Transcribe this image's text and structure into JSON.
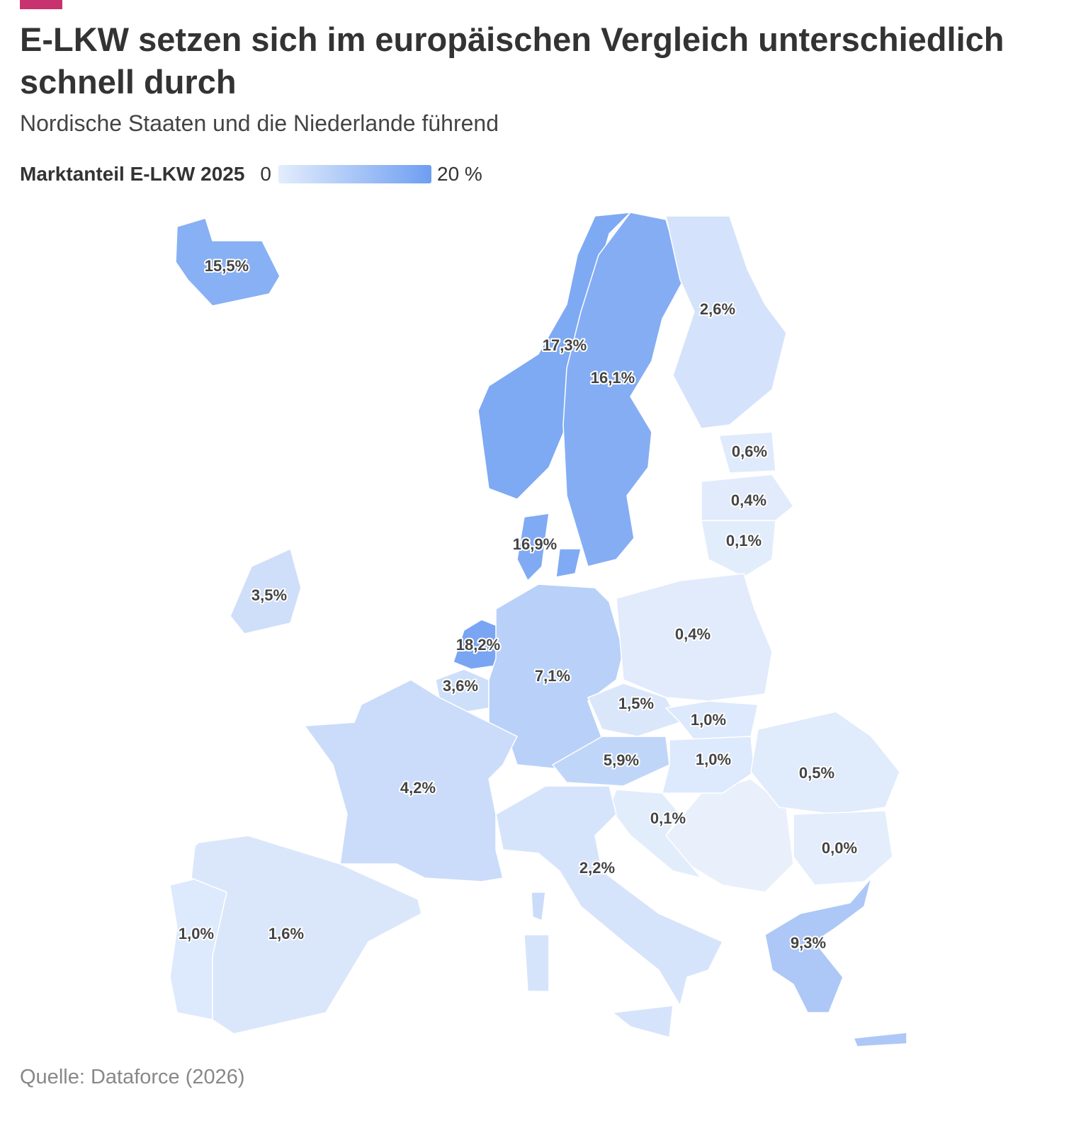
{
  "chart_data": {
    "type": "choropleth",
    "title": "E-LKW setzen sich im europäischen Vergleich unterschiedlich schnell durch",
    "subtitle": "Nordische Staaten und die Niederlande führend",
    "legend_title": "Marktanteil E-LKW 2025",
    "scale": {
      "min": {
        "value": 0,
        "label": "0"
      },
      "max": {
        "value": 20,
        "label": "20 %"
      },
      "colors": [
        "#e3edfc",
        "#6e9ef2"
      ]
    },
    "values": [
      15.5,
      17.3,
      16.1,
      2.6,
      0.6,
      0.4,
      0.1,
      16.9,
      3.5,
      18.2,
      3.6,
      7.1,
      0.4,
      1.5,
      1.0,
      5.9,
      1.0,
      0.5,
      0.1,
      0.0,
      2.2,
      4.2,
      1.0,
      1.6,
      9.3
    ],
    "value_labels": [
      "15,5%",
      "17,3%",
      "16,1%",
      "2,6%",
      "0,6%",
      "0,4%",
      "0,1%",
      "16,9%",
      "3,5%",
      "18,2%",
      "3,6%",
      "7,1%",
      "0,4%",
      "1,5%",
      "1,0%",
      "5,9%",
      "1,0%",
      "0,5%",
      "0,1%",
      "0,0%",
      "2,2%",
      "4,2%",
      "1,0%",
      "1,6%",
      "9,3%"
    ],
    "source": "Quelle: Dataforce (2026)"
  }
}
